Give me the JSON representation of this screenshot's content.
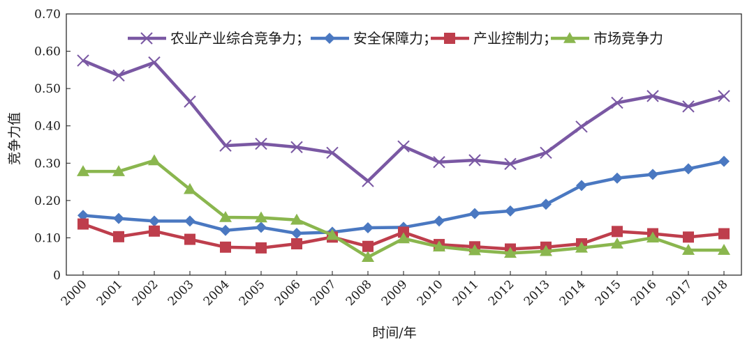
{
  "chart_data": {
    "type": "line",
    "title": "",
    "xlabel": "时间/年",
    "ylabel": "竞争力值",
    "ylim": [
      0,
      0.7
    ],
    "y_ticks": [
      "0",
      "0.10",
      "0.20",
      "0.30",
      "0.40",
      "0.50",
      "0.60",
      "0.70"
    ],
    "legend_position": "top",
    "categories": [
      "2000",
      "2001",
      "2002",
      "2003",
      "2004",
      "2005",
      "2006",
      "2007",
      "2008",
      "2009",
      "2010",
      "2011",
      "2012",
      "2013",
      "2014",
      "2015",
      "2016",
      "2017",
      "2018"
    ],
    "series": [
      {
        "name": "农业产业综合竞争力；",
        "marker": "x",
        "color": "#7a58a3",
        "values": [
          0.575,
          0.535,
          0.57,
          0.465,
          0.347,
          0.352,
          0.343,
          0.328,
          0.252,
          0.345,
          0.303,
          0.308,
          0.298,
          0.328,
          0.398,
          0.462,
          0.48,
          0.452,
          0.48
        ]
      },
      {
        "name": "安全保障力；",
        "marker": "diamond",
        "color": "#4a78c1",
        "values": [
          0.16,
          0.152,
          0.145,
          0.145,
          0.12,
          0.128,
          0.112,
          0.115,
          0.127,
          0.128,
          0.145,
          0.165,
          0.172,
          0.19,
          0.24,
          0.26,
          0.27,
          0.285,
          0.305
        ]
      },
      {
        "name": "产业控制力；",
        "marker": "square",
        "color": "#be3e4c",
        "values": [
          0.137,
          0.103,
          0.118,
          0.096,
          0.075,
          0.073,
          0.084,
          0.102,
          0.077,
          0.115,
          0.082,
          0.076,
          0.07,
          0.075,
          0.084,
          0.117,
          0.111,
          0.102,
          0.111
        ]
      },
      {
        "name": "市场竞争力",
        "marker": "triangle",
        "color": "#8ab64e",
        "values": [
          0.278,
          0.278,
          0.307,
          0.23,
          0.155,
          0.154,
          0.148,
          0.107,
          0.048,
          0.098,
          0.076,
          0.066,
          0.059,
          0.064,
          0.073,
          0.084,
          0.1,
          0.067,
          0.067
        ]
      }
    ]
  }
}
